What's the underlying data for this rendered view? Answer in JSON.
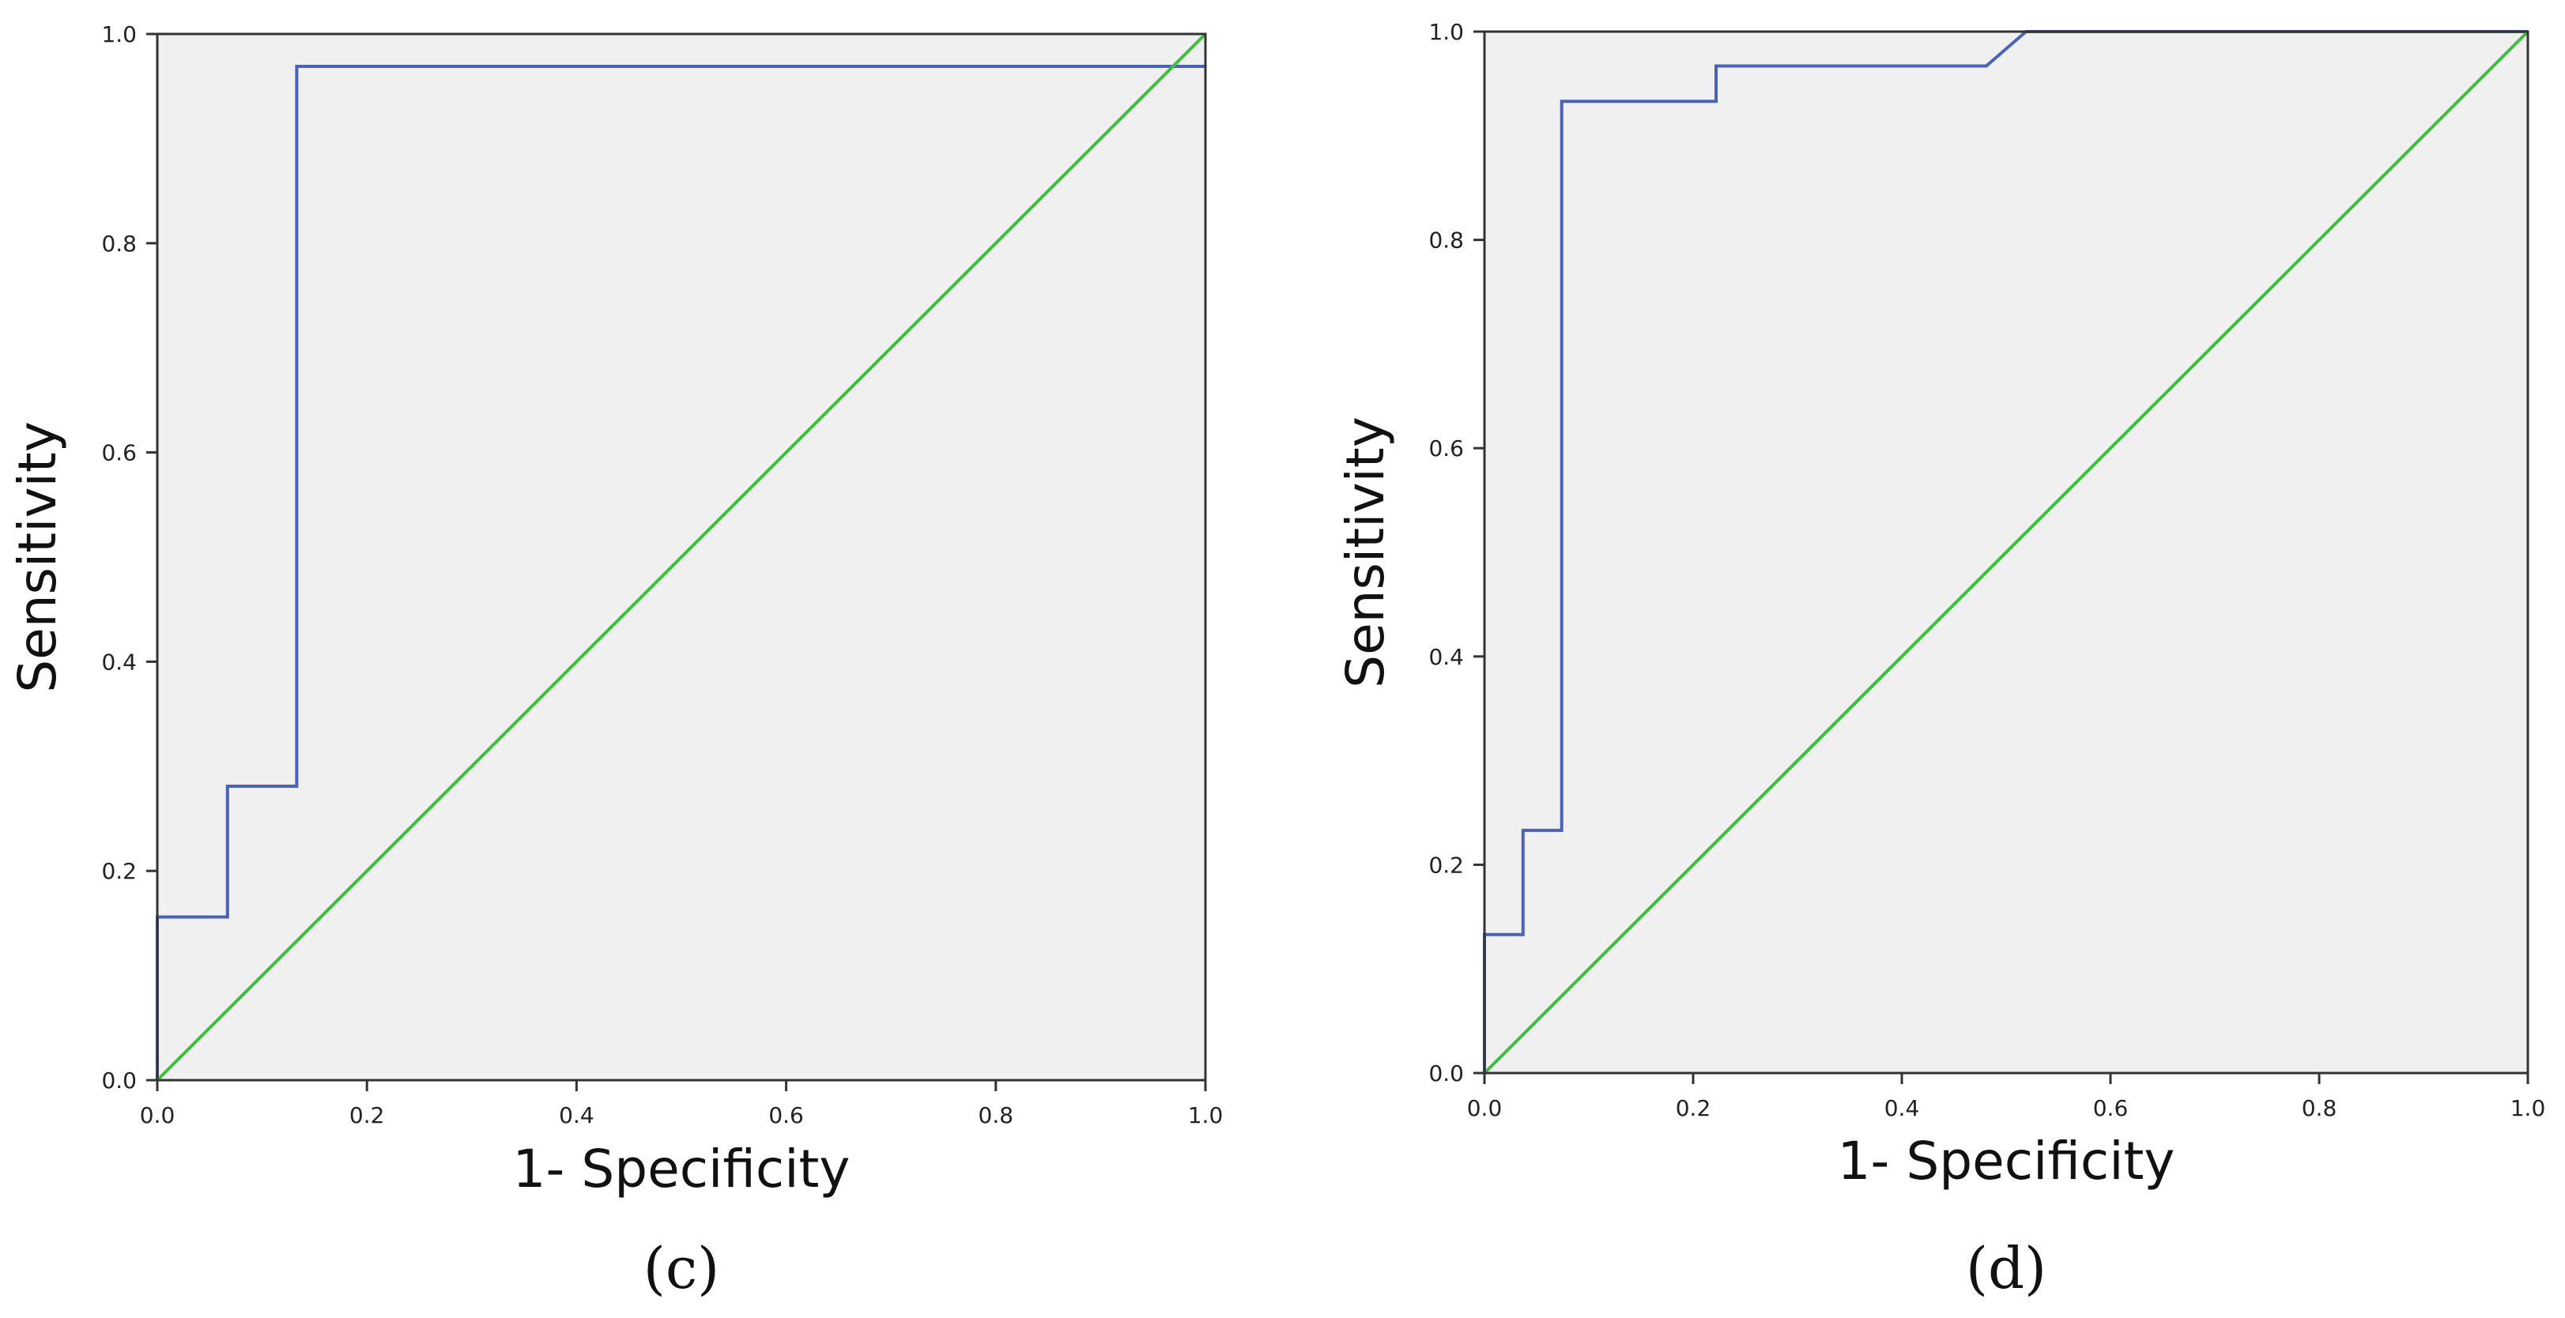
{
  "chart_data": [
    {
      "type": "line",
      "panel_label": "(c)",
      "xlabel": "1- Specificity",
      "ylabel": "Sensitivity",
      "xlim": [
        0,
        1
      ],
      "ylim": [
        0,
        1
      ],
      "x_ticks": [
        "0.0",
        "0.2",
        "0.4",
        "0.6",
        "0.8",
        "1.0"
      ],
      "y_ticks": [
        "0.0",
        "0.2",
        "0.4",
        "0.6",
        "0.8",
        "1.0"
      ],
      "grid": false,
      "legend": "none",
      "plot_background": "#f0f0f0",
      "series": [
        {
          "color": "#4a62b8",
          "x": [
            0,
            0,
            0.067,
            0.067,
            0.133,
            0.133,
            1.0
          ],
          "y": [
            0,
            0.156,
            0.156,
            0.281,
            0.281,
            0.969,
            0.969
          ]
        },
        {
          "color": "#3cc03c",
          "x": [
            0,
            1
          ],
          "y": [
            0,
            1
          ]
        }
      ]
    },
    {
      "type": "line",
      "panel_label": "(d)",
      "xlabel": "1- Specificity",
      "ylabel": "Sensitivity",
      "xlim": [
        0,
        1
      ],
      "ylim": [
        0,
        1
      ],
      "x_ticks": [
        "0.0",
        "0.2",
        "0.4",
        "0.6",
        "0.8",
        "1.0"
      ],
      "y_ticks": [
        "0.0",
        "0.2",
        "0.4",
        "0.6",
        "0.8",
        "1.0"
      ],
      "grid": false,
      "legend": "none",
      "plot_background": "#f0f0f0",
      "series": [
        {
          "color": "#4a62b8",
          "x": [
            0,
            0,
            0.037,
            0.037,
            0.074,
            0.074,
            0.222,
            0.222,
            0.481,
            0.519,
            1.0
          ],
          "y": [
            0,
            0.133,
            0.133,
            0.233,
            0.233,
            0.933,
            0.933,
            0.967,
            0.967,
            1.0,
            1.0
          ]
        },
        {
          "color": "#3cc03c",
          "x": [
            0,
            1
          ],
          "y": [
            0,
            1
          ]
        }
      ]
    }
  ]
}
